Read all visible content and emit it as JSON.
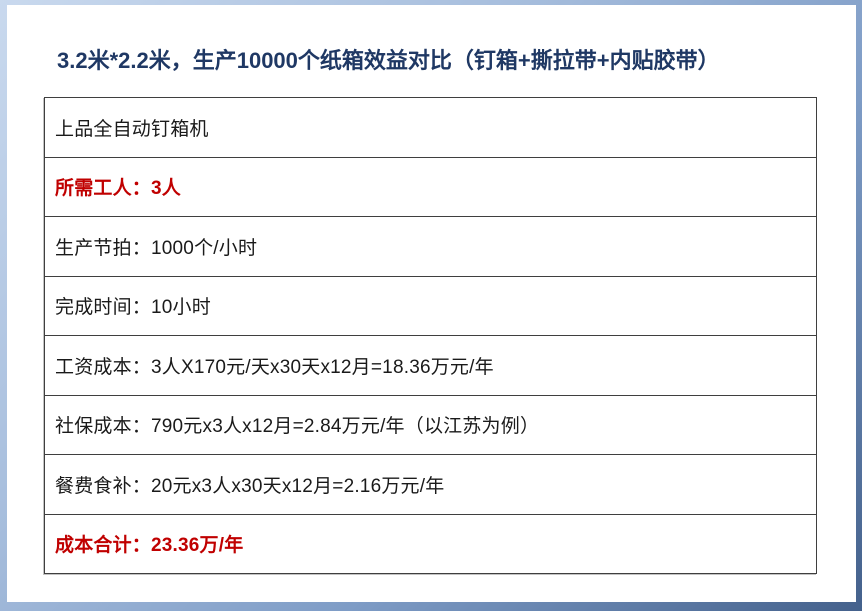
{
  "slide": {
    "title": "3.2米*2.2米，生产10000个纸箱效益对比（钉箱+撕拉带+内贴胶带）",
    "title_color": "#1f3864",
    "highlight_color": "#c00000",
    "frame_color_light": "#c9d9ee",
    "frame_color_dark": "#44618c",
    "border_color": "#3f3f3f"
  },
  "table": {
    "rows": [
      {
        "text": "上品全自动钉箱机",
        "emphasis": false
      },
      {
        "text": "所需工人：3人",
        "emphasis": true
      },
      {
        "text": "生产节拍：1000个/小时",
        "emphasis": false
      },
      {
        "text": "完成时间：10小时",
        "emphasis": false
      },
      {
        "text": "工资成本：3人X170元/天x30天x12月=18.36万元/年",
        "emphasis": false
      },
      {
        "text": "社保成本：790元x3人x12月=2.84万元/年（以江苏为例）",
        "emphasis": false
      },
      {
        "text": "餐费食补：20元x3人x30天x12月=2.16万元/年",
        "emphasis": false
      },
      {
        "text": "成本合计：23.36万/年",
        "emphasis": true
      }
    ]
  }
}
